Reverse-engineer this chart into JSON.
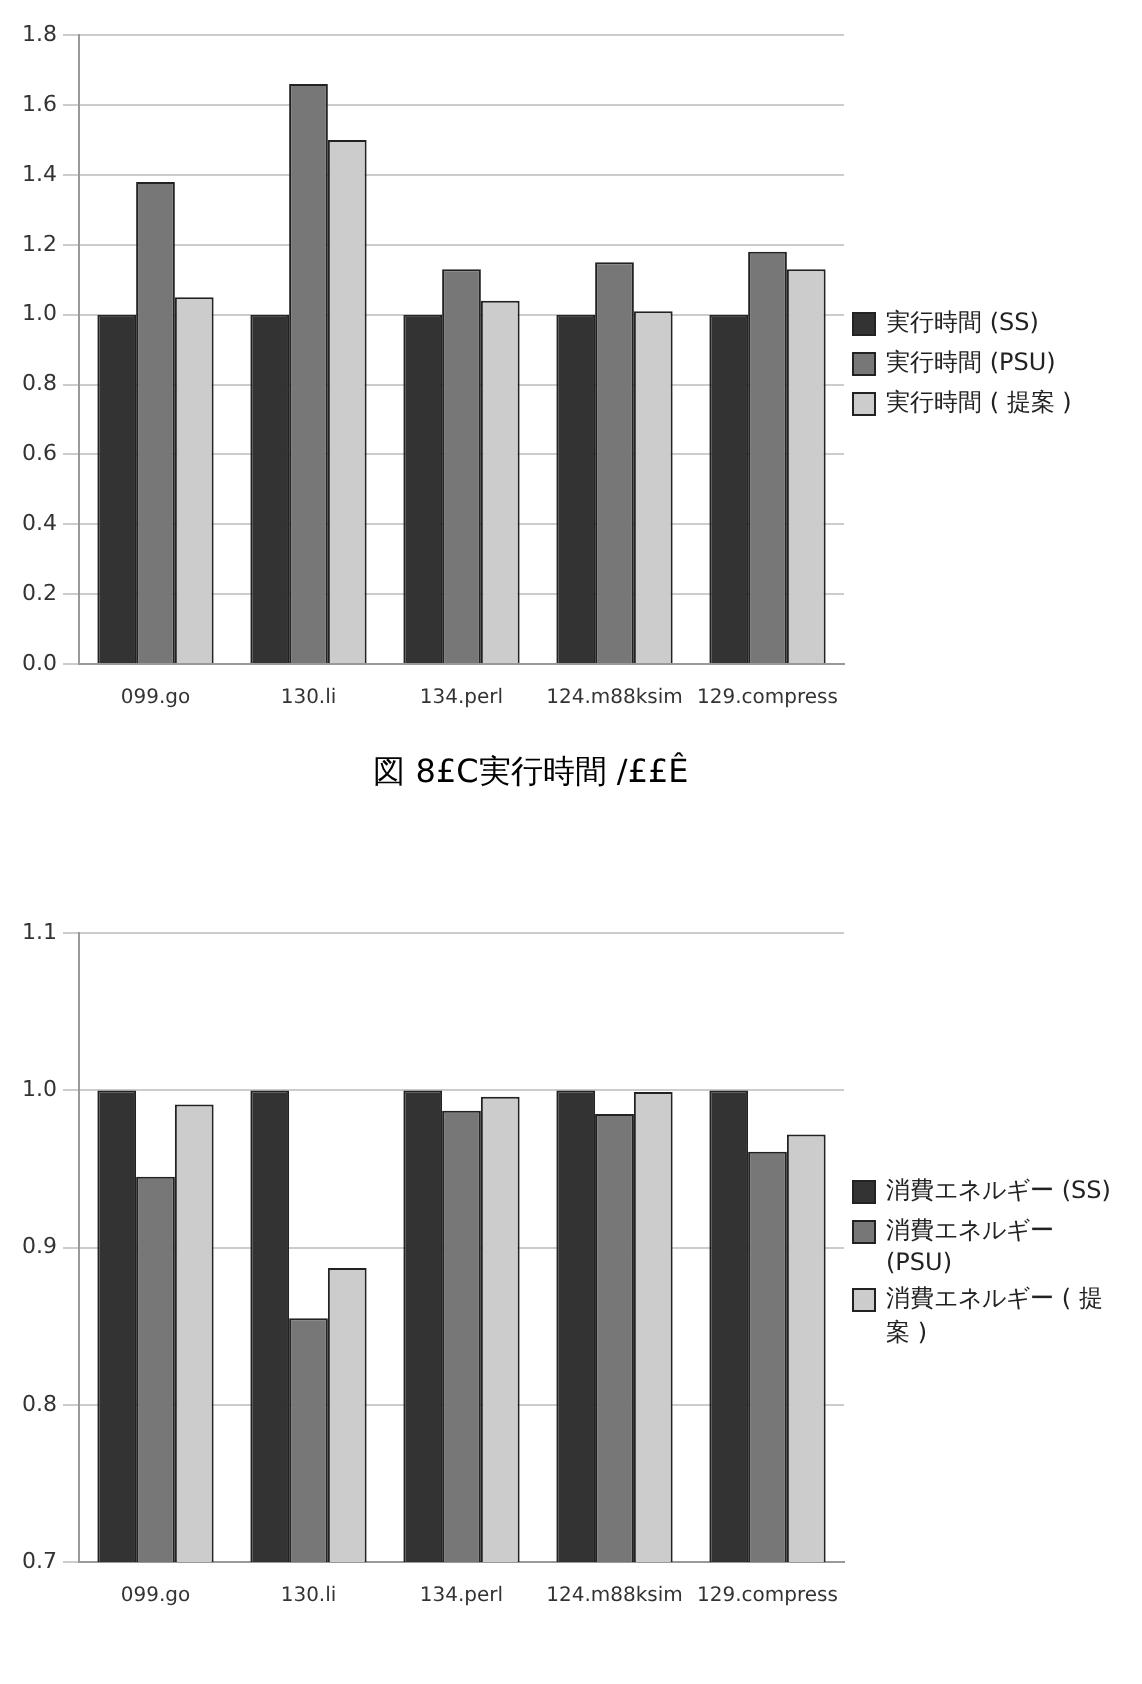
{
  "chart_data": [
    {
      "type": "bar",
      "categories": [
        "099.go",
        "130.li",
        "134.perl",
        "124.m88ksim",
        "129.compress"
      ],
      "series": [
        {
          "name": "実行時間 (SS)",
          "color": "#333333",
          "values": [
            1.0,
            1.0,
            1.0,
            1.0,
            1.0
          ]
        },
        {
          "name": "実行時間 (PSU)",
          "color": "#777777",
          "values": [
            1.38,
            1.66,
            1.13,
            1.15,
            1.18
          ]
        },
        {
          "name": "実行時間 ( 提案 )",
          "color": "#cccccc",
          "values": [
            1.05,
            1.5,
            1.04,
            1.01,
            1.13
          ]
        }
      ],
      "ylim": [
        0,
        1.8
      ],
      "yticks": [
        {
          "value": 0,
          "label": "0.0"
        },
        {
          "value": 0.2,
          "label": "0.2"
        },
        {
          "value": 0.4,
          "label": "0.4"
        },
        {
          "value": 0.6,
          "label": "0.6"
        },
        {
          "value": 0.8,
          "label": "0.8"
        },
        {
          "value": 1,
          "label": "1.0"
        },
        {
          "value": 1.2,
          "label": "1.2"
        },
        {
          "value": 1.4,
          "label": "1.4"
        },
        {
          "value": 1.6,
          "label": "1.6"
        },
        {
          "value": 1.8,
          "label": "1.8"
        }
      ],
      "grid": "y",
      "legend": "right",
      "annotations": [
        "図 8£C実行時間 /££Ê"
      ]
    },
    {
      "type": "bar",
      "categories": [
        "099.go",
        "130.li",
        "134.perl",
        "124.m88ksim",
        "129.compress"
      ],
      "series": [
        {
          "name": "消費エネルギー (SS)",
          "color": "#333333",
          "values": [
            1.0,
            1.0,
            1.0,
            1.0,
            1.0
          ]
        },
        {
          "name": "消費エネルギー (PSU)",
          "color": "#777777",
          "values": [
            0.945,
            0.855,
            0.987,
            0.985,
            0.961
          ]
        },
        {
          "name": "消費エネルギー ( 提案 )",
          "color": "#cccccc",
          "values": [
            0.991,
            0.887,
            0.996,
            0.999,
            0.972
          ]
        }
      ],
      "ylim": [
        0.7,
        1.1
      ],
      "yticks": [
        {
          "value": 0.7,
          "label": "0.7"
        },
        {
          "value": 0.8,
          "label": "0.8"
        },
        {
          "value": 0.9,
          "label": "0.9"
        },
        {
          "value": 1,
          "label": "1.0"
        },
        {
          "value": 1.1,
          "label": "1.1"
        }
      ],
      "grid": "y",
      "legend": "right"
    }
  ]
}
